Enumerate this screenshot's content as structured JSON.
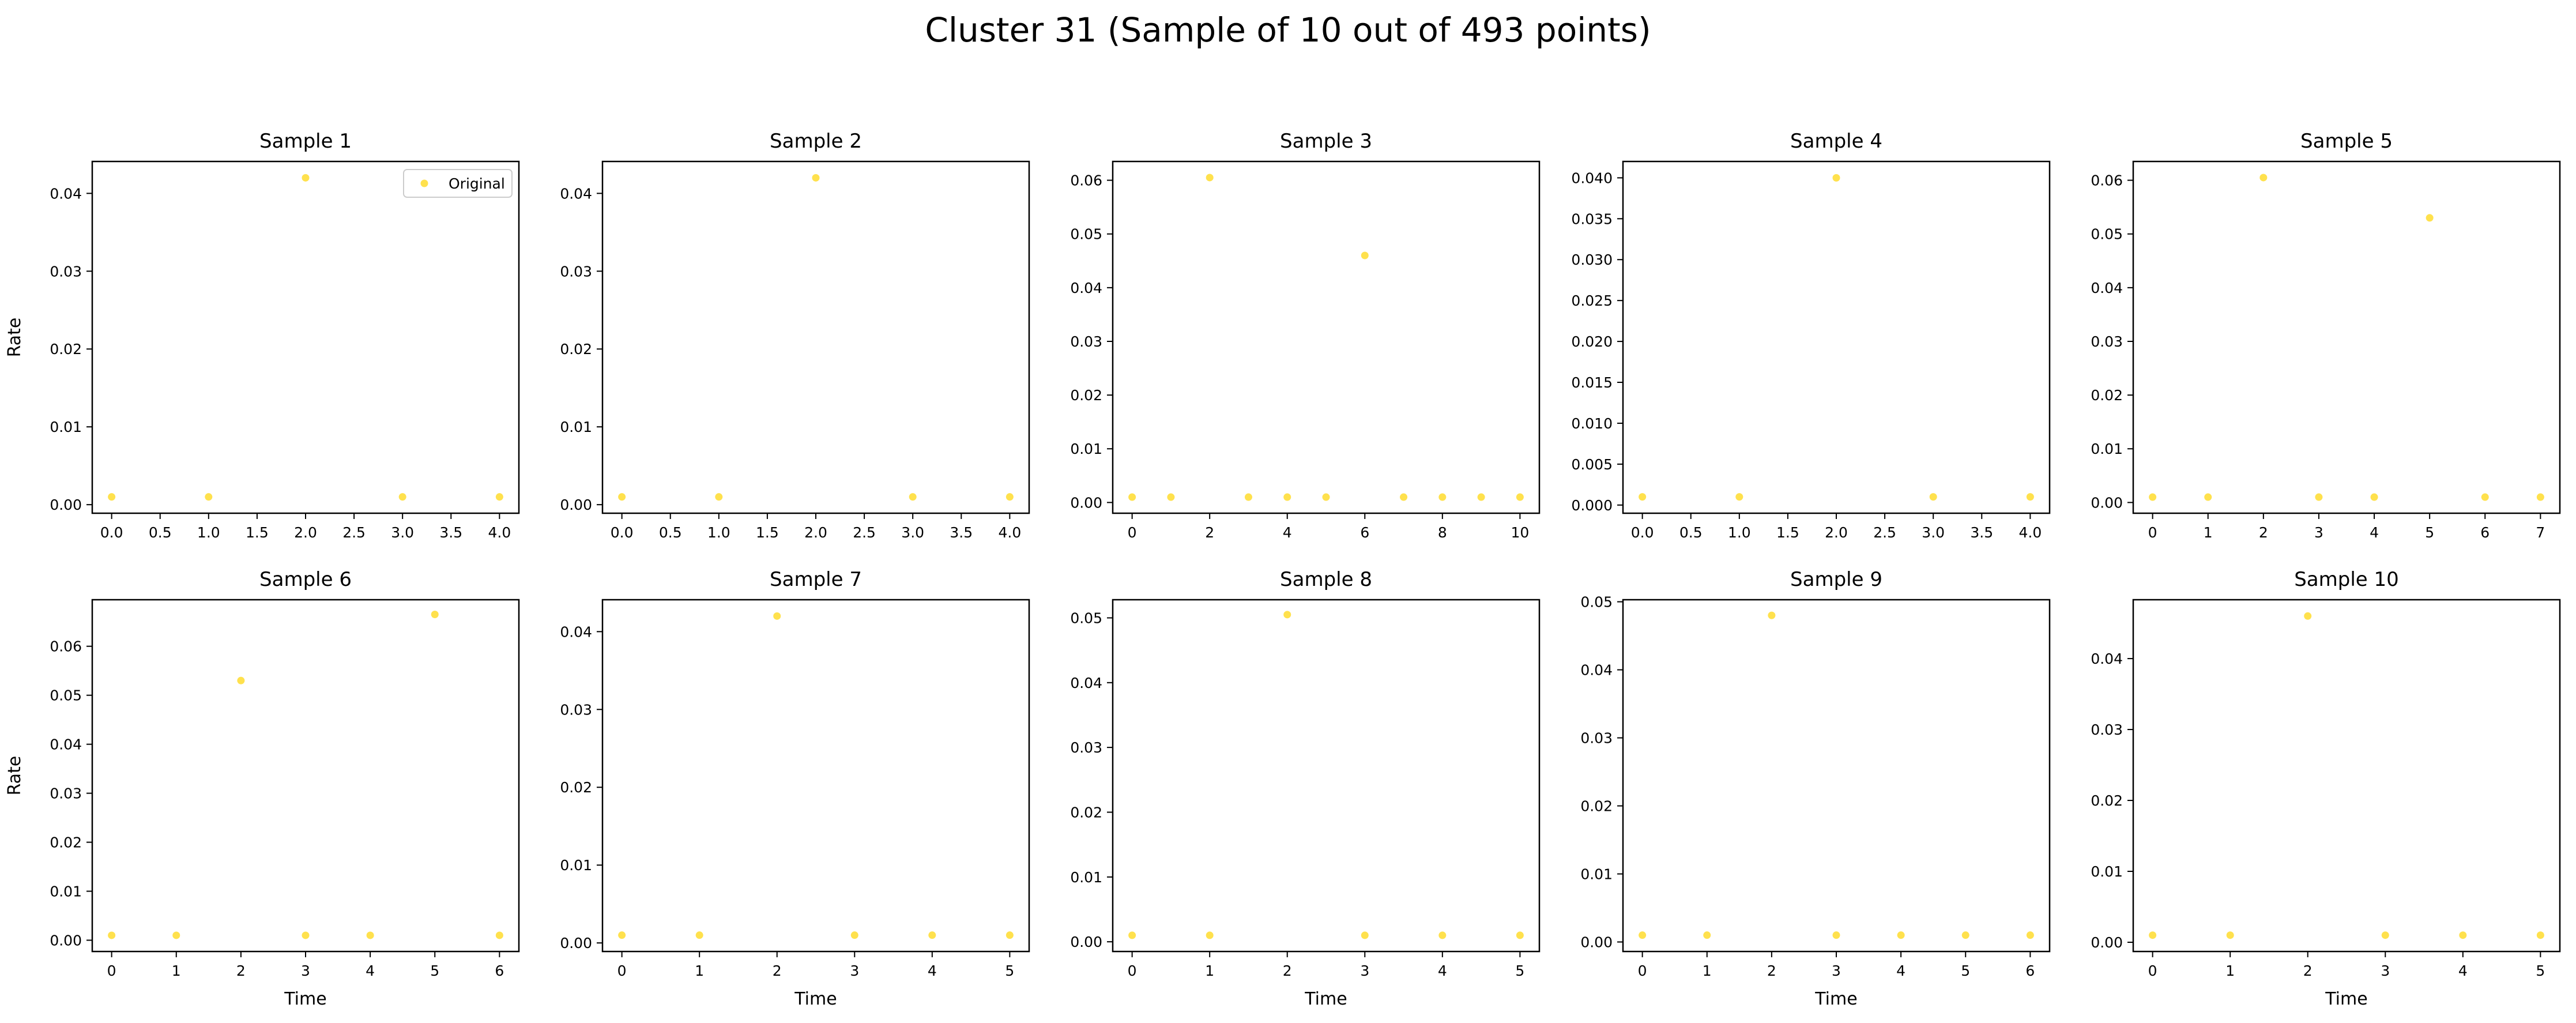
{
  "figure": {
    "title": "Cluster 31 (Sample of 10 out of 493 points)"
  },
  "style": {
    "point_color": "#ffe14d",
    "axis_color": "#000000",
    "text_color": "#000000"
  },
  "chart_data": [
    {
      "type": "scatter",
      "title": "Sample 1",
      "xlabel": "",
      "ylabel": "Rate",
      "legend": {
        "show": true,
        "placement": "top-right",
        "entries": [
          "Original"
        ]
      },
      "grid": false,
      "xlim": [
        -0.2,
        4.2
      ],
      "ylim": [
        -0.0011,
        0.0441
      ],
      "xticks": [
        0,
        0.5,
        1,
        1.5,
        2,
        2.5,
        3,
        3.5,
        4
      ],
      "xtick_labels": [
        "0.0",
        "0.5",
        "1.0",
        "1.5",
        "2.0",
        "2.5",
        "3.0",
        "3.5",
        "4.0"
      ],
      "yticks": [
        0,
        0.01,
        0.02,
        0.03,
        0.04
      ],
      "ytick_labels": [
        "0.00",
        "0.01",
        "0.02",
        "0.03",
        "0.04"
      ],
      "series": [
        {
          "name": "Original",
          "x": [
            0,
            1,
            2,
            3,
            4
          ],
          "y": [
            0.001,
            0.001,
            0.042,
            0.001,
            0.001
          ]
        }
      ]
    },
    {
      "type": "scatter",
      "title": "Sample 2",
      "xlabel": "",
      "ylabel": "",
      "legend": {
        "show": false
      },
      "grid": false,
      "xlim": [
        -0.2,
        4.2
      ],
      "ylim": [
        -0.0011,
        0.0441
      ],
      "xticks": [
        0,
        0.5,
        1,
        1.5,
        2,
        2.5,
        3,
        3.5,
        4
      ],
      "xtick_labels": [
        "0.0",
        "0.5",
        "1.0",
        "1.5",
        "2.0",
        "2.5",
        "3.0",
        "3.5",
        "4.0"
      ],
      "yticks": [
        0,
        0.01,
        0.02,
        0.03,
        0.04
      ],
      "ytick_labels": [
        "0.00",
        "0.01",
        "0.02",
        "0.03",
        "0.04"
      ],
      "series": [
        {
          "x": [
            0,
            1,
            2,
            3,
            4
          ],
          "y": [
            0.001,
            0.001,
            0.042,
            0.001,
            0.001
          ]
        }
      ]
    },
    {
      "type": "scatter",
      "title": "Sample 3",
      "xlabel": "",
      "ylabel": "",
      "legend": {
        "show": false
      },
      "grid": false,
      "xlim": [
        -0.5,
        10.5
      ],
      "ylim": [
        -0.002,
        0.0635
      ],
      "xticks": [
        0,
        2,
        4,
        6,
        8,
        10
      ],
      "xtick_labels": [
        "0",
        "2",
        "4",
        "6",
        "8",
        "10"
      ],
      "yticks": [
        0,
        0.01,
        0.02,
        0.03,
        0.04,
        0.05,
        0.06
      ],
      "ytick_labels": [
        "0.00",
        "0.01",
        "0.02",
        "0.03",
        "0.04",
        "0.05",
        "0.06"
      ],
      "series": [
        {
          "x": [
            0,
            1,
            2,
            3,
            4,
            5,
            6,
            7,
            8,
            9,
            10
          ],
          "y": [
            0.001,
            0.001,
            0.0605,
            0.001,
            0.001,
            0.001,
            0.046,
            0.001,
            0.001,
            0.001,
            0.001
          ]
        }
      ]
    },
    {
      "type": "scatter",
      "title": "Sample 4",
      "xlabel": "",
      "ylabel": "",
      "legend": {
        "show": false
      },
      "grid": false,
      "xlim": [
        -0.2,
        4.2
      ],
      "ylim": [
        -0.001,
        0.042
      ],
      "xticks": [
        0,
        0.5,
        1,
        1.5,
        2,
        2.5,
        3,
        3.5,
        4
      ],
      "xtick_labels": [
        "0.0",
        "0.5",
        "1.0",
        "1.5",
        "2.0",
        "2.5",
        "3.0",
        "3.5",
        "4.0"
      ],
      "yticks": [
        0,
        0.005,
        0.01,
        0.015,
        0.02,
        0.025,
        0.03,
        0.035,
        0.04
      ],
      "ytick_labels": [
        "0.000",
        "0.005",
        "0.010",
        "0.015",
        "0.020",
        "0.025",
        "0.030",
        "0.035",
        "0.040"
      ],
      "series": [
        {
          "x": [
            0,
            1,
            2,
            3,
            4
          ],
          "y": [
            0.001,
            0.001,
            0.04,
            0.001,
            0.001
          ]
        }
      ]
    },
    {
      "type": "scatter",
      "title": "Sample 5",
      "xlabel": "",
      "ylabel": "",
      "legend": {
        "show": false
      },
      "grid": false,
      "xlim": [
        -0.35,
        7.35
      ],
      "ylim": [
        -0.002,
        0.0635
      ],
      "xticks": [
        0,
        1,
        2,
        3,
        4,
        5,
        6,
        7
      ],
      "xtick_labels": [
        "0",
        "1",
        "2",
        "3",
        "4",
        "5",
        "6",
        "7"
      ],
      "yticks": [
        0,
        0.01,
        0.02,
        0.03,
        0.04,
        0.05,
        0.06
      ],
      "ytick_labels": [
        "0.00",
        "0.01",
        "0.02",
        "0.03",
        "0.04",
        "0.05",
        "0.06"
      ],
      "series": [
        {
          "x": [
            0,
            1,
            2,
            3,
            4,
            5,
            6,
            7
          ],
          "y": [
            0.001,
            0.001,
            0.0605,
            0.001,
            0.001,
            0.053,
            0.001,
            0.001
          ]
        }
      ]
    },
    {
      "type": "scatter",
      "title": "Sample 6",
      "xlabel": "Time",
      "ylabel": "Rate",
      "legend": {
        "show": false
      },
      "grid": false,
      "xlim": [
        -0.3,
        6.3
      ],
      "ylim": [
        -0.0023,
        0.0695
      ],
      "xticks": [
        0,
        1,
        2,
        3,
        4,
        5,
        6
      ],
      "xtick_labels": [
        "0",
        "1",
        "2",
        "3",
        "4",
        "5",
        "6"
      ],
      "yticks": [
        0,
        0.01,
        0.02,
        0.03,
        0.04,
        0.05,
        0.06
      ],
      "ytick_labels": [
        "0.00",
        "0.01",
        "0.02",
        "0.03",
        "0.04",
        "0.05",
        "0.06"
      ],
      "series": [
        {
          "x": [
            0,
            1,
            2,
            3,
            4,
            5,
            6
          ],
          "y": [
            0.001,
            0.001,
            0.053,
            0.001,
            0.001,
            0.0665,
            0.001
          ]
        }
      ]
    },
    {
      "type": "scatter",
      "title": "Sample 7",
      "xlabel": "Time",
      "ylabel": "",
      "legend": {
        "show": false
      },
      "grid": false,
      "xlim": [
        -0.25,
        5.25
      ],
      "ylim": [
        -0.0011,
        0.0441
      ],
      "xticks": [
        0,
        1,
        2,
        3,
        4,
        5
      ],
      "xtick_labels": [
        "0",
        "1",
        "2",
        "3",
        "4",
        "5"
      ],
      "yticks": [
        0,
        0.01,
        0.02,
        0.03,
        0.04
      ],
      "ytick_labels": [
        "0.00",
        "0.01",
        "0.02",
        "0.03",
        "0.04"
      ],
      "series": [
        {
          "x": [
            0,
            1,
            2,
            3,
            4,
            5
          ],
          "y": [
            0.001,
            0.001,
            0.042,
            0.001,
            0.001,
            0.001
          ]
        }
      ]
    },
    {
      "type": "scatter",
      "title": "Sample 8",
      "xlabel": "Time",
      "ylabel": "",
      "legend": {
        "show": false
      },
      "grid": false,
      "xlim": [
        -0.25,
        5.25
      ],
      "ylim": [
        -0.0015,
        0.0528
      ],
      "xticks": [
        0,
        1,
        2,
        3,
        4,
        5
      ],
      "xtick_labels": [
        "0",
        "1",
        "2",
        "3",
        "4",
        "5"
      ],
      "yticks": [
        0,
        0.01,
        0.02,
        0.03,
        0.04,
        0.05
      ],
      "ytick_labels": [
        "0.00",
        "0.01",
        "0.02",
        "0.03",
        "0.04",
        "0.05"
      ],
      "series": [
        {
          "x": [
            0,
            1,
            2,
            3,
            4,
            5
          ],
          "y": [
            0.001,
            0.001,
            0.0505,
            0.001,
            0.001,
            0.001
          ]
        }
      ]
    },
    {
      "type": "scatter",
      "title": "Sample 9",
      "xlabel": "Time",
      "ylabel": "",
      "legend": {
        "show": false
      },
      "grid": false,
      "xlim": [
        -0.3,
        6.3
      ],
      "ylim": [
        -0.0014,
        0.0503
      ],
      "xticks": [
        0,
        1,
        2,
        3,
        4,
        5,
        6
      ],
      "xtick_labels": [
        "0",
        "1",
        "2",
        "3",
        "4",
        "5",
        "6"
      ],
      "yticks": [
        0,
        0.01,
        0.02,
        0.03,
        0.04,
        0.05
      ],
      "ytick_labels": [
        "0.00",
        "0.01",
        "0.02",
        "0.03",
        "0.04",
        "0.05"
      ],
      "series": [
        {
          "x": [
            0,
            1,
            2,
            3,
            4,
            5,
            6
          ],
          "y": [
            0.001,
            0.001,
            0.048,
            0.001,
            0.001,
            0.001,
            0.001
          ]
        }
      ]
    },
    {
      "type": "scatter",
      "title": "Sample 10",
      "xlabel": "Time",
      "ylabel": "",
      "legend": {
        "show": false
      },
      "grid": false,
      "xlim": [
        -0.25,
        5.25
      ],
      "ylim": [
        -0.0013,
        0.0483
      ],
      "xticks": [
        0,
        1,
        2,
        3,
        4,
        5
      ],
      "xtick_labels": [
        "0",
        "1",
        "2",
        "3",
        "4",
        "5"
      ],
      "yticks": [
        0,
        0.01,
        0.02,
        0.03,
        0.04
      ],
      "ytick_labels": [
        "0.00",
        "0.01",
        "0.02",
        "0.03",
        "0.04"
      ],
      "series": [
        {
          "x": [
            0,
            1,
            2,
            3,
            4,
            5
          ],
          "y": [
            0.001,
            0.001,
            0.046,
            0.001,
            0.001,
            0.001
          ]
        }
      ]
    }
  ]
}
